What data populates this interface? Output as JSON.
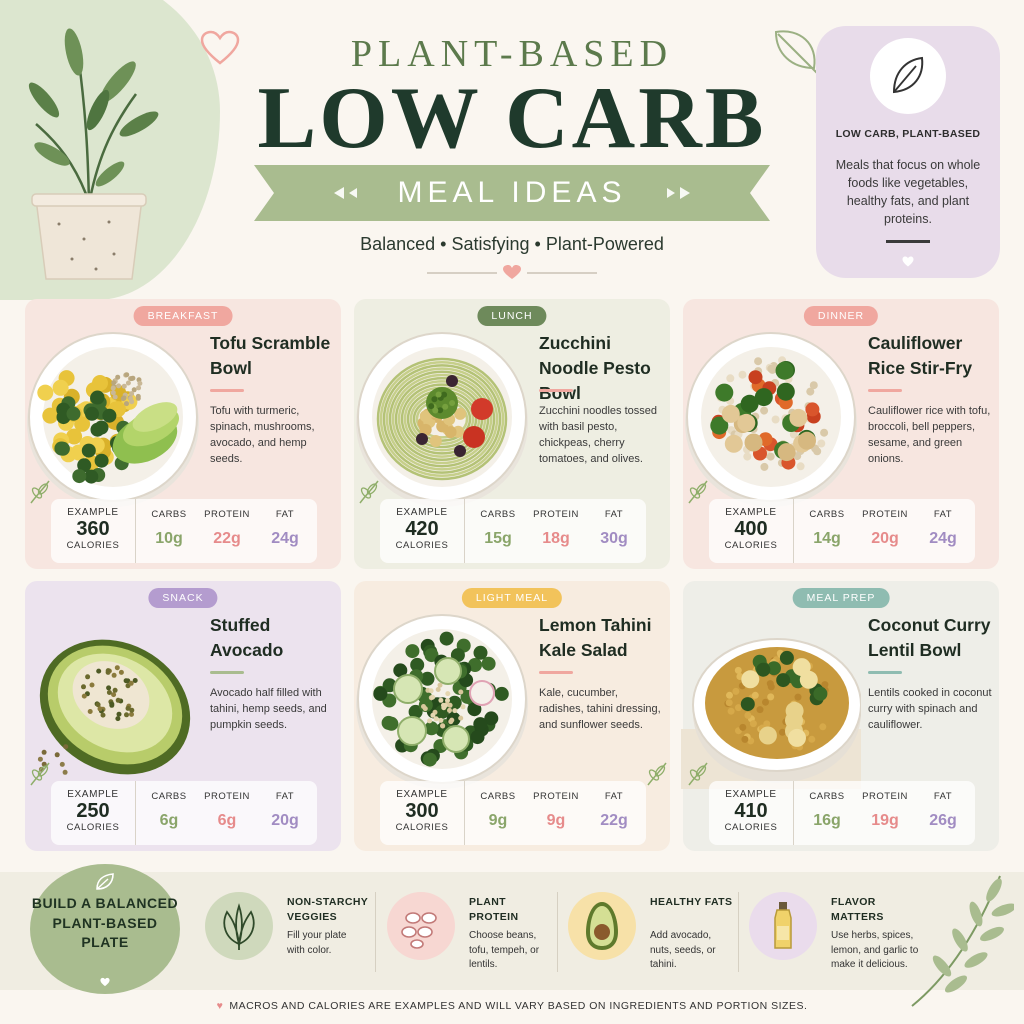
{
  "header": {
    "title_small": "PLANT-BASED",
    "title_big": "LOW CARB",
    "ribbon": "MEAL IDEAS",
    "tagline": "Balanced • Satisfying • Plant-Powered"
  },
  "intro": {
    "title": "LOW CARB, PLANT-BASED",
    "text": "Meals that focus on whole foods like vegetables, healthy fats, and plant proteins."
  },
  "labels": {
    "example": "EXAMPLE",
    "calories": "CALORIES",
    "carbs": "CARBS",
    "protein": "PROTEIN",
    "fat": "FAT"
  },
  "meals": [
    {
      "badge": "BREAKFAST",
      "title": "Tofu Scramble Bowl",
      "desc": "Tofu with turmeric, spinach, mushrooms, avocado, and hemp seeds.",
      "calories": "360",
      "carbs": "10g",
      "protein": "22g",
      "fat": "24g",
      "badge_color": "#f0a79f",
      "card_color": "#f7e6e0"
    },
    {
      "badge": "LUNCH",
      "title": "Zucchini Noodle Pesto Bowl",
      "desc": "Zucchini noodles tossed with basil pesto, chickpeas, cherry tomatoes, and olives.",
      "calories": "420",
      "carbs": "15g",
      "protein": "18g",
      "fat": "30g",
      "badge_color": "#6e8a5b",
      "card_color": "#eeeee2"
    },
    {
      "badge": "DINNER",
      "title": "Cauliflower Rice Stir-Fry",
      "desc": "Cauliflower rice with tofu, broccoli, bell peppers, sesame, and green onions.",
      "calories": "400",
      "carbs": "14g",
      "protein": "20g",
      "fat": "24g",
      "badge_color": "#f0a79f",
      "card_color": "#f7e6e0"
    },
    {
      "badge": "SNACK",
      "title": "Stuffed Avocado",
      "desc": "Avocado half filled with tahini, hemp seeds, and pumpkin seeds.",
      "calories": "250",
      "carbs": "6g",
      "protein": "6g",
      "fat": "20g",
      "badge_color": "#b49ccf",
      "card_color": "#ece3ee"
    },
    {
      "badge": "LIGHT MEAL",
      "title": "Lemon Tahini Kale Salad",
      "desc": "Kale, cucumber, radishes, tahini dressing, and sunflower seeds.",
      "calories": "300",
      "carbs": "9g",
      "protein": "9g",
      "fat": "22g",
      "badge_color": "#f2c35b",
      "card_color": "#f7ece0"
    },
    {
      "badge": "MEAL PREP",
      "title": "Coconut Curry Lentil Bowl",
      "desc": "Lentils cooked in coconut curry with spinach and cauliflower.",
      "calories": "410",
      "carbs": "16g",
      "protein": "19g",
      "fat": "26g",
      "badge_color": "#8fbcb1",
      "card_color": "#eeeee8"
    }
  ],
  "bottom": {
    "heading": "BUILD A BALANCED PLANT-BASED PLATE",
    "tips": [
      {
        "title": "NON-STARCHY VEGGIES",
        "text": "Fill your plate with color.",
        "icon": "spinach-icon",
        "color": "#cfd9bc"
      },
      {
        "title": "PLANT PROTEIN",
        "text": "Choose beans, tofu, tempeh, or lentils.",
        "icon": "beans-icon",
        "color": "#f7d7d2"
      },
      {
        "title": "HEALTHY FATS",
        "text": "Add avocado, nuts, seeds, or tahini.",
        "icon": "avocado-icon",
        "color": "#f7e1a8"
      },
      {
        "title": "FLAVOR MATTERS",
        "text": "Use herbs, spices, lemon, and garlic to make it delicious.",
        "icon": "oil-bottle-icon",
        "color": "#eadcec"
      }
    ],
    "footnote": "MACROS AND CALORIES ARE EXAMPLES AND WILL VARY BASED ON INGREDIENTS AND PORTION SIZES."
  }
}
